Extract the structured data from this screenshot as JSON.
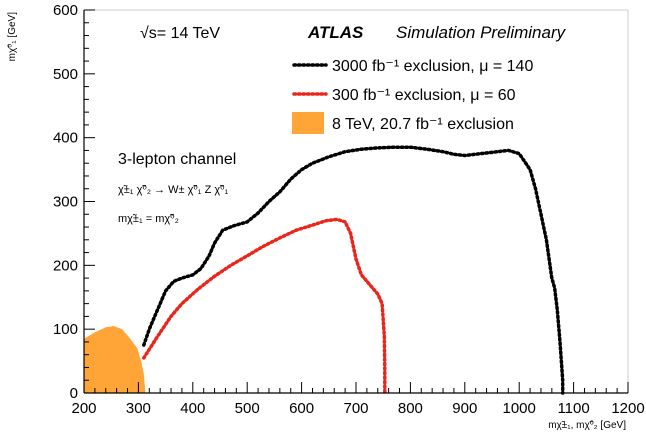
{
  "chart_data": {
    "type": "line",
    "title": "",
    "xlabel": "mχ̃±₁, mχ̃⁰₂ [GeV]",
    "ylabel": "mχ̃⁰₁ [GeV]",
    "xlim": [
      200,
      1200
    ],
    "ylim": [
      0,
      600
    ],
    "x_ticks": [
      200,
      300,
      400,
      500,
      600,
      700,
      800,
      900,
      1000,
      1100,
      1200
    ],
    "y_ticks": [
      0,
      100,
      200,
      300,
      400,
      500,
      600
    ],
    "grid": false,
    "legend_position": "top-right",
    "annotations": {
      "energy": "√s= 14 TeV",
      "experiment": "ATLAS",
      "status": "Simulation Preliminary",
      "channel": "3-lepton channel",
      "process": "χ̃±₁ χ̃⁰₂ → W± χ̃⁰₁ Z χ̃⁰₁",
      "mass_relation": "mχ̃±₁ = mχ̃⁰₂"
    },
    "series": [
      {
        "name": "3000 fb⁻¹ exclusion, μ = 140",
        "style": "dotted",
        "color": "#000000",
        "x": [
          310,
          320,
          335,
          350,
          365,
          380,
          400,
          415,
          430,
          440,
          455,
          475,
          500,
          520,
          540,
          560,
          580,
          600,
          620,
          650,
          680,
          710,
          740,
          770,
          800,
          830,
          860,
          880,
          900,
          930,
          960,
          980,
          1000,
          1020,
          1030,
          1040,
          1050,
          1055,
          1060,
          1065,
          1070,
          1075,
          1080,
          1080
        ],
        "y": [
          75,
          100,
          130,
          160,
          175,
          180,
          185,
          195,
          215,
          235,
          255,
          262,
          268,
          282,
          300,
          315,
          335,
          350,
          360,
          370,
          378,
          382,
          384,
          385,
          385,
          382,
          378,
          374,
          372,
          375,
          378,
          380,
          375,
          350,
          320,
          280,
          240,
          210,
          180,
          165,
          130,
          80,
          20,
          0
        ]
      },
      {
        "name": "300 fb⁻¹ exclusion, μ = 60",
        "style": "dotted",
        "color": "#e8261c",
        "x": [
          310,
          325,
          340,
          360,
          380,
          410,
          440,
          470,
          500,
          530,
          560,
          590,
          620,
          645,
          665,
          680,
          690,
          700,
          710,
          725,
          740,
          748,
          752,
          753,
          753,
          753
        ],
        "y": [
          55,
          75,
          95,
          120,
          140,
          163,
          183,
          200,
          215,
          230,
          243,
          255,
          263,
          270,
          272,
          268,
          250,
          210,
          185,
          170,
          155,
          140,
          90,
          40,
          10,
          0
        ]
      },
      {
        "name": "8 TeV, 20.7 fb⁻¹ exclusion",
        "style": "filled",
        "color": "#ffa436",
        "x": [
          200,
          200,
          220,
          240,
          255,
          270,
          285,
          298,
          305,
          310,
          312,
          313
        ],
        "y": [
          0,
          85,
          95,
          103,
          105,
          100,
          85,
          70,
          50,
          30,
          10,
          0
        ]
      }
    ]
  }
}
